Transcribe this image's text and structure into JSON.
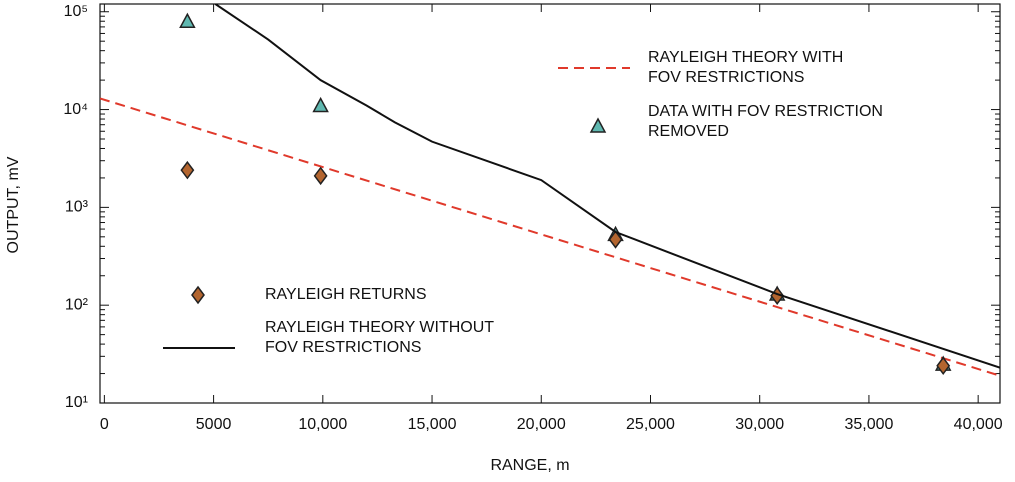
{
  "chart_data": {
    "type": "line",
    "x_label": "RANGE, m",
    "y_label": "OUTPUT, mV",
    "log_y": true,
    "xlim": [
      -200,
      41000
    ],
    "ylim": [
      10,
      120000
    ],
    "xticks": [
      0,
      5000,
      {
        "value": 10000,
        "label": "10,000"
      },
      {
        "value": 15000,
        "label": "15,000"
      },
      {
        "value": 20000,
        "label": "20,000"
      },
      {
        "value": 25000,
        "label": "25,000"
      },
      {
        "value": 30000,
        "label": "30,000"
      },
      {
        "value": 35000,
        "label": "35,000"
      },
      {
        "value": 40000,
        "label": "40,000"
      }
    ],
    "yticks": [
      {
        "value": 10,
        "label": "10¹"
      },
      {
        "value": 100,
        "label": "10²"
      },
      {
        "value": 1000,
        "label": "10³"
      },
      {
        "value": 10000,
        "label": "10⁴"
      },
      {
        "value": 100000,
        "label": "10⁵"
      }
    ],
    "series": [
      {
        "name": "RAYLEIGH THEORY WITH\nFOV RESTRICTIONS",
        "style": "dashed",
        "color": "#e0392b",
        "x": [
          -200,
          41000
        ],
        "values": [
          13000,
          19
        ]
      },
      {
        "name": "DATA WITH FOV RESTRICTION\nREMOVED",
        "style": "triangle",
        "color": "#5fb8b0",
        "x": [
          3800,
          9900,
          23400,
          30800,
          38400
        ],
        "values": [
          80000,
          11000,
          530,
          130,
          25
        ]
      },
      {
        "name": "RAYLEIGH RETURNS",
        "style": "diamond",
        "color": "#b3652f",
        "x": [
          3800,
          9900,
          23400,
          30800,
          38400
        ],
        "values": [
          2400,
          2100,
          470,
          125,
          24
        ]
      },
      {
        "name": "RAYLEIGH THEORY WITHOUT\nFOV RESTRICTIONS",
        "style": "solid",
        "color": "#111111",
        "x": [
          5080,
          7500,
          9900,
          12000,
          13300,
          15000,
          20000,
          23400,
          30800,
          41000
        ],
        "values": [
          120000,
          52000,
          20000,
          11000,
          7400,
          4700,
          1900,
          560,
          130,
          23
        ]
      }
    ]
  }
}
